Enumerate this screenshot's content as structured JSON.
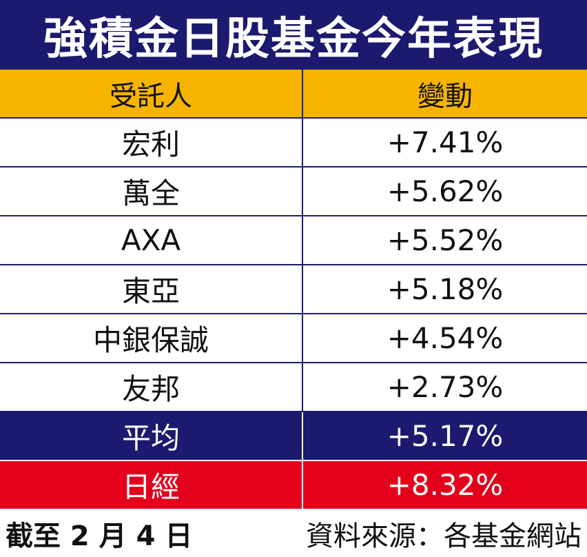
{
  "title": "強積金日股基金今年表現",
  "table": {
    "headers": [
      "受託人",
      "變動"
    ],
    "rows": [
      {
        "trustee": "宏利",
        "change": "+7.41%"
      },
      {
        "trustee": "萬全",
        "change": "+5.62%"
      },
      {
        "trustee": "AXA",
        "change": "+5.52%"
      },
      {
        "trustee": "東亞",
        "change": "+5.18%"
      },
      {
        "trustee": "中銀保誠",
        "change": "+4.54%"
      },
      {
        "trustee": "友邦",
        "change": "+2.73%"
      }
    ],
    "average": {
      "label": "平均",
      "change": "+5.17%"
    },
    "nikkei": {
      "label": "日經",
      "change": "+8.32%"
    }
  },
  "footer": {
    "date": "截至 2 月 4 日",
    "source": "資料來源：各基金網站"
  },
  "colors": {
    "navy": "#1c1a6e",
    "header_yellow": "#f6b400",
    "nikkei_red": "#e3001b"
  }
}
